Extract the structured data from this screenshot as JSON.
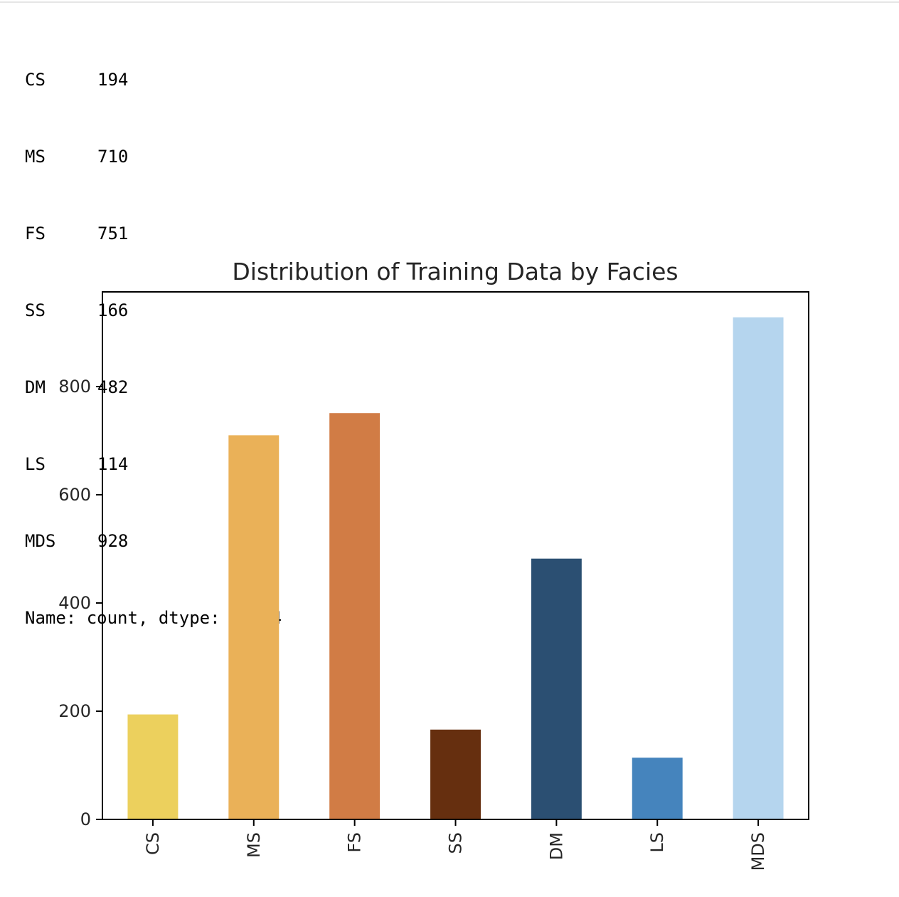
{
  "series_printout": {
    "rows": [
      {
        "label": "CS",
        "value": "194"
      },
      {
        "label": "MS",
        "value": "710"
      },
      {
        "label": "FS",
        "value": "751"
      },
      {
        "label": "SS",
        "value": "166"
      },
      {
        "label": "DM",
        "value": "482"
      },
      {
        "label": "LS",
        "value": "114"
      },
      {
        "label": "MDS",
        "value": "928"
      }
    ],
    "footer": "Name: count, dtype: int64"
  },
  "chart_data": {
    "type": "bar",
    "title": "Distribution of Training Data by Facies",
    "xlabel": "",
    "ylabel": "",
    "categories": [
      "CS",
      "MS",
      "FS",
      "SS",
      "DM",
      "LS",
      "MDS"
    ],
    "values": [
      194,
      710,
      751,
      166,
      482,
      114,
      928
    ],
    "colors": [
      "#ECD05D",
      "#EAB158",
      "#D17C45",
      "#662F0F",
      "#2B4F72",
      "#4584BD",
      "#B5D5EE"
    ],
    "ylim": [
      0,
      975
    ],
    "yticks": [
      0,
      200,
      400,
      600,
      800
    ],
    "ytick_labels": [
      "0",
      "200",
      "400",
      "600",
      "800"
    ],
    "xtick_rotation": "vertical",
    "grid": false,
    "legend": "none"
  }
}
